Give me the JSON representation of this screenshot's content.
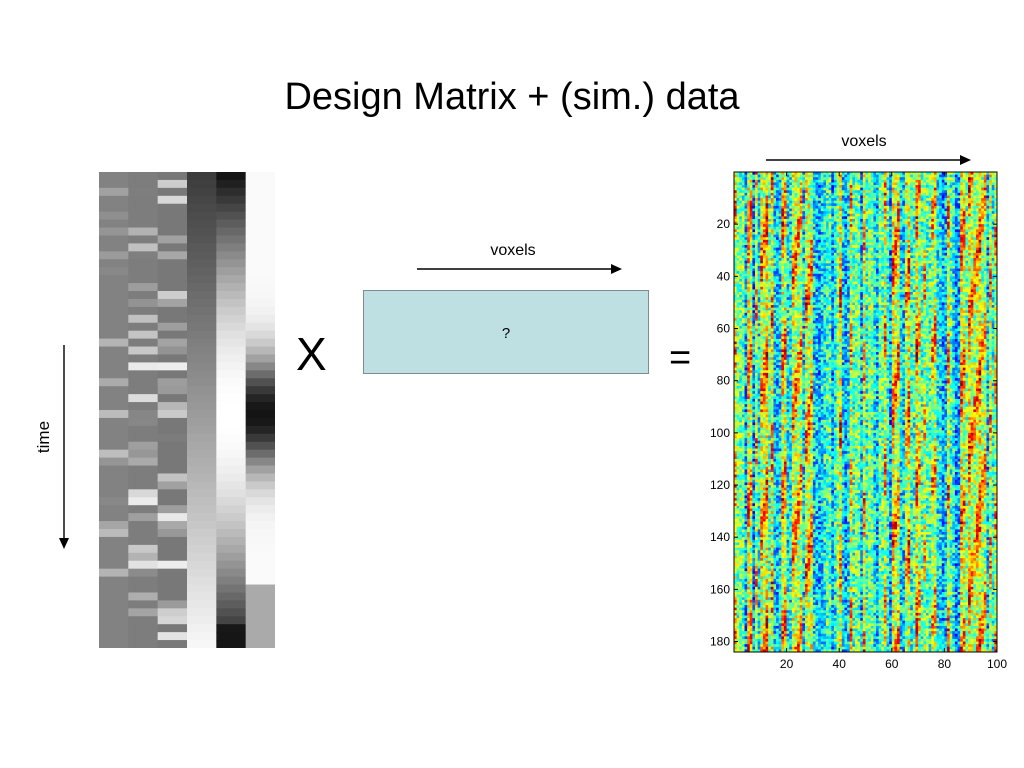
{
  "title": "Design Matrix + (sim.) data",
  "design_matrix": {
    "time_label": "time"
  },
  "operator_times": "X",
  "operator_equals": "=",
  "parameters": {
    "voxels_label": "voxels",
    "unknown": "?"
  },
  "data": {
    "voxels_label": "voxels",
    "colormap": "jet",
    "x_ticks": [
      "20",
      "40",
      "60",
      "80",
      "100"
    ],
    "y_ticks": [
      "20",
      "40",
      "60",
      "80",
      "100",
      "120",
      "140",
      "160",
      "180"
    ]
  },
  "colors": {
    "beta_box_fill": "#bfe0e3",
    "arrow": "#000000"
  }
}
